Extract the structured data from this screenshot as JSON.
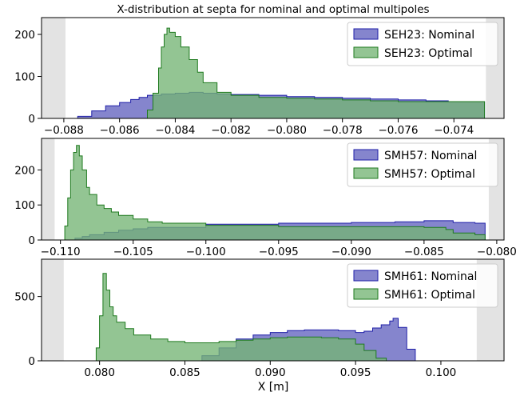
{
  "title": "X-distribution at septa for nominal and optimal multipoles",
  "xlabel": "X [m]",
  "colors": {
    "nominal_fill": "#7b7bc9",
    "nominal_edge": "#1f1fa8",
    "optimal_fill": "#74b574",
    "optimal_edge": "#1f7a1f",
    "overlap_fill": "#3f7060",
    "shade": "#e3e3e3"
  },
  "chart_data": [
    {
      "type": "area",
      "subtype": "step-histogram",
      "xlim": [
        -0.0888,
        -0.0722
      ],
      "ylim": [
        0,
        240
      ],
      "xticks": [
        -0.088,
        -0.086,
        -0.084,
        -0.082,
        -0.08,
        -0.078,
        -0.076,
        -0.074
      ],
      "xtick_labels": [
        "−0.088",
        "−0.086",
        "−0.084",
        "−0.082",
        "−0.080",
        "−0.078",
        "−0.076",
        "−0.074"
      ],
      "yticks": [
        0,
        100,
        200
      ],
      "ytick_labels": [
        "0",
        "100",
        "200"
      ],
      "shaded_left": [
        -0.0888,
        -0.08794
      ],
      "shaded_right": [
        -0.07285,
        -0.0722
      ],
      "legend_position": "top-right",
      "series": [
        {
          "name": "SEH23: Nominal",
          "role": "nominal",
          "x": [
            -0.0878,
            -0.0875,
            -0.087,
            -0.0865,
            -0.086,
            -0.0856,
            -0.0853,
            -0.085,
            -0.0845,
            -0.084,
            -0.0835,
            -0.083,
            -0.0825,
            -0.082,
            -0.081,
            -0.08,
            -0.079,
            -0.078,
            -0.077,
            -0.076,
            -0.075,
            -0.0742,
            -0.0729
          ],
          "y": [
            0,
            5,
            18,
            30,
            38,
            45,
            50,
            55,
            58,
            60,
            62,
            60,
            58,
            57,
            55,
            52,
            50,
            48,
            46,
            44,
            42,
            40,
            40
          ]
        },
        {
          "name": "SEH23: Optimal",
          "role": "optimal",
          "x": [
            -0.0853,
            -0.085,
            -0.0848,
            -0.0846,
            -0.0845,
            -0.0844,
            -0.0843,
            -0.0842,
            -0.084,
            -0.0838,
            -0.0835,
            -0.0832,
            -0.083,
            -0.0825,
            -0.082,
            -0.081,
            -0.08,
            -0.079,
            -0.078,
            -0.077,
            -0.076,
            -0.075,
            -0.0742,
            -0.0729
          ],
          "y": [
            0,
            20,
            60,
            120,
            170,
            200,
            215,
            205,
            195,
            170,
            140,
            110,
            85,
            62,
            55,
            50,
            48,
            46,
            44,
            42,
            40,
            40,
            40,
            40
          ]
        }
      ]
    },
    {
      "type": "area",
      "subtype": "step-histogram",
      "xlim": [
        -0.1113,
        -0.0795
      ],
      "ylim": [
        0,
        290
      ],
      "xticks": [
        -0.11,
        -0.105,
        -0.1,
        -0.095,
        -0.09,
        -0.085,
        -0.08
      ],
      "xtick_labels": [
        "−0.110",
        "−0.105",
        "−0.100",
        "−0.095",
        "−0.090",
        "−0.085",
        "−0.080"
      ],
      "yticks": [
        0,
        100,
        200
      ],
      "ytick_labels": [
        "0",
        "100",
        "200"
      ],
      "shaded_left": [
        -0.1113,
        -0.1104
      ],
      "shaded_right": [
        -0.08055,
        -0.0795
      ],
      "legend_position": "top-right",
      "series": [
        {
          "name": "SMH57: Nominal",
          "role": "nominal",
          "x": [
            -0.1095,
            -0.109,
            -0.1085,
            -0.108,
            -0.107,
            -0.106,
            -0.105,
            -0.104,
            -0.1,
            -0.095,
            -0.09,
            -0.087,
            -0.085,
            -0.083,
            -0.0815,
            -0.0808
          ],
          "y": [
            0,
            5,
            10,
            15,
            22,
            28,
            32,
            36,
            45,
            48,
            50,
            52,
            55,
            50,
            48,
            48
          ]
        },
        {
          "name": "SMH57: Optimal",
          "role": "optimal",
          "x": [
            -0.1099,
            -0.1097,
            -0.1095,
            -0.1093,
            -0.1091,
            -0.1089,
            -0.1087,
            -0.1085,
            -0.1082,
            -0.108,
            -0.1075,
            -0.107,
            -0.1065,
            -0.106,
            -0.105,
            -0.104,
            -0.103,
            -0.1,
            -0.095,
            -0.09,
            -0.087,
            -0.085,
            -0.0835,
            -0.083,
            -0.0815,
            -0.0808
          ],
          "y": [
            0,
            40,
            120,
            200,
            250,
            270,
            240,
            200,
            150,
            130,
            100,
            90,
            80,
            70,
            60,
            52,
            48,
            42,
            38,
            38,
            38,
            36,
            30,
            20,
            15,
            15
          ]
        }
      ]
    },
    {
      "type": "area",
      "subtype": "step-histogram",
      "xlim": [
        0.0766,
        0.1037
      ],
      "ylim": [
        0,
        790
      ],
      "xticks": [
        0.08,
        0.085,
        0.09,
        0.095,
        0.1
      ],
      "xtick_labels": [
        "0.080",
        "0.085",
        "0.090",
        "0.095",
        "0.100"
      ],
      "yticks": [
        0,
        500
      ],
      "ytick_labels": [
        "0",
        "500"
      ],
      "shaded_left": [
        0.0766,
        0.0779
      ],
      "shaded_right": [
        0.1021,
        0.1037
      ],
      "legend_position": "top-right",
      "xlabel": "X [m]",
      "series": [
        {
          "name": "SMH61: Nominal",
          "role": "nominal",
          "x": [
            0.0855,
            0.086,
            0.087,
            0.088,
            0.089,
            0.09,
            0.091,
            0.092,
            0.093,
            0.094,
            0.095,
            0.0955,
            0.096,
            0.0965,
            0.097,
            0.0972,
            0.0975,
            0.098,
            0.0985
          ],
          "y": [
            0,
            40,
            100,
            170,
            200,
            220,
            235,
            240,
            240,
            235,
            220,
            230,
            255,
            280,
            310,
            330,
            260,
            90,
            0
          ]
        },
        {
          "name": "SMH61: Optimal",
          "role": "optimal",
          "x": [
            0.0795,
            0.0798,
            0.08,
            0.0802,
            0.0804,
            0.0806,
            0.0808,
            0.081,
            0.0815,
            0.082,
            0.083,
            0.084,
            0.085,
            0.086,
            0.087,
            0.088,
            0.089,
            0.09,
            0.091,
            0.092,
            0.093,
            0.094,
            0.095,
            0.0955,
            0.0962,
            0.0968
          ],
          "y": [
            0,
            100,
            350,
            680,
            550,
            420,
            350,
            300,
            250,
            200,
            170,
            150,
            140,
            140,
            150,
            160,
            170,
            180,
            185,
            185,
            180,
            170,
            130,
            80,
            20,
            0
          ]
        }
      ]
    }
  ]
}
